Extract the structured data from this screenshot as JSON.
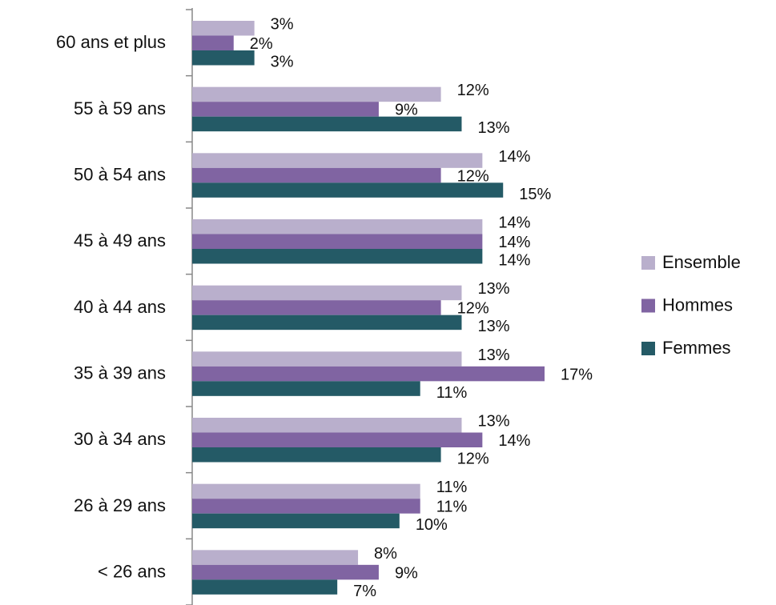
{
  "chart_data": {
    "type": "bar",
    "orientation": "horizontal",
    "categories": [
      "60 ans et plus",
      "55 à 59 ans",
      "50 à 54 ans",
      "45 à 49 ans",
      "40 à 44 ans",
      "35 à 39 ans",
      "30 à 34 ans",
      "26 à 29 ans",
      "< 26 ans"
    ],
    "series": [
      {
        "name": "Ensemble",
        "color": "#b9afcc",
        "values": [
          3,
          12,
          14,
          14,
          13,
          13,
          13,
          11,
          8
        ],
        "value_labels": [
          "3%",
          "12%",
          "14%",
          "14%",
          "13%",
          "13%",
          "13%",
          "11%",
          "8%"
        ]
      },
      {
        "name": "Hommes",
        "color": "#8064a2",
        "values": [
          2,
          9,
          12,
          14,
          12,
          17,
          14,
          11,
          9
        ],
        "value_labels": [
          "2%",
          "9%",
          "12%",
          "14%",
          "12%",
          "17%",
          "14%",
          "11%",
          "9%"
        ]
      },
      {
        "name": "Femmes",
        "color": "#245a66",
        "values": [
          3,
          13,
          15,
          14,
          13,
          11,
          12,
          10,
          7
        ],
        "value_labels": [
          "3%",
          "13%",
          "15%",
          "14%",
          "13%",
          "11%",
          "12%",
          "10%",
          "7%"
        ]
      }
    ],
    "legend": "right"
  }
}
